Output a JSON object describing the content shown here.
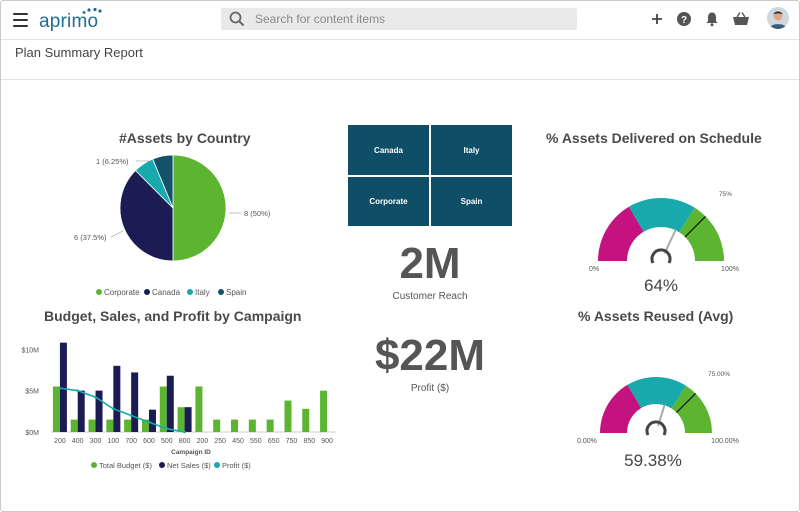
{
  "app": {
    "logo_text": "aprimo"
  },
  "search": {
    "placeholder": "Search for content items"
  },
  "page": {
    "title": "Plan Summary Report"
  },
  "colors": {
    "green": "#5cb531",
    "navy": "#1c1c54",
    "teal": "#17a9ab",
    "darkteal": "#14526b",
    "magenta": "#c4127f",
    "tile": "#0e4e66"
  },
  "toolbar": {
    "icons": [
      "plus-icon",
      "help-icon",
      "bell-icon",
      "basket-icon"
    ]
  },
  "pie": {
    "title": "#Assets by Country",
    "labels": {
      "spain": "1 (6.25%)",
      "corporate": "8 (50%)",
      "canada": "6 (37.5%)"
    },
    "legend": [
      "Corporate",
      "Canada",
      "Italy",
      "Spain"
    ]
  },
  "tiles": [
    "Canada",
    "Italy",
    "Corporate",
    "Spain"
  ],
  "kpi1": {
    "value": "2M",
    "label": "Customer Reach"
  },
  "kpi2": {
    "value": "$22M",
    "label": "Profit ($)"
  },
  "gauge1": {
    "title": "% Assets Delivered on Schedule",
    "value_label": "64%",
    "value": 0.64,
    "target": 0.75,
    "target_label": "75%",
    "min_label": "0%",
    "max_label": "100%"
  },
  "gauge2": {
    "title": "% Assets Reused (Avg)",
    "value_label": "59.38%",
    "value": 0.5938,
    "target": 0.75,
    "target_label": "75.00%",
    "min_label": "0.00%",
    "max_label": "100.00%"
  },
  "chart_data": [
    {
      "type": "pie",
      "title": "#Assets by Country",
      "slices": [
        {
          "name": "Corporate",
          "value": 8,
          "percent": 50,
          "color": "#5cb531"
        },
        {
          "name": "Canada",
          "value": 6,
          "percent": 37.5,
          "color": "#1c1c54"
        },
        {
          "name": "Italy",
          "value": 1,
          "percent": 6.25,
          "color": "#17a9ab"
        },
        {
          "name": "Spain",
          "value": 1,
          "percent": 6.25,
          "color": "#14526b"
        }
      ]
    },
    {
      "type": "bar",
      "title": "Budget, Sales, and Profit by Campaign",
      "xlabel": "Campaign ID",
      "ylabel": "",
      "ylim": [
        0,
        11
      ],
      "y_ticks": [
        "$0M",
        "$5M",
        "$10M"
      ],
      "categories": [
        "200",
        "400",
        "300",
        "100",
        "700",
        "600",
        "500",
        "800",
        "200",
        "250",
        "450",
        "550",
        "650",
        "750",
        "850",
        "900"
      ],
      "series": [
        {
          "name": "Total Budget ($)",
          "type": "bar",
          "color": "#5cb531",
          "values": [
            5.5,
            1.5,
            1.5,
            1.5,
            1.5,
            1.5,
            5.5,
            3.0,
            5.5,
            1.5,
            1.5,
            1.5,
            1.5,
            3.8,
            2.8,
            5.0
          ]
        },
        {
          "name": "Net Sales ($)",
          "type": "bar",
          "color": "#1c1c54",
          "values": [
            10.8,
            5.0,
            5.0,
            8.0,
            7.2,
            2.7,
            6.8,
            3.0,
            0,
            0,
            0,
            0,
            0,
            0,
            0,
            0
          ]
        },
        {
          "name": "Profit ($)",
          "type": "line",
          "color": "#17a9ab",
          "values": [
            5.3,
            5.0,
            4.2,
            2.8,
            2.0,
            1.2,
            0.4,
            0.0,
            null,
            null,
            null,
            null,
            null,
            null,
            null,
            null
          ]
        }
      ]
    }
  ]
}
